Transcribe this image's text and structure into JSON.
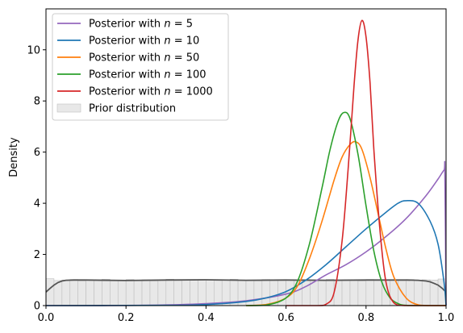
{
  "chart_data": {
    "type": "line",
    "xlabel": "",
    "ylabel": "Density",
    "xlim": [
      0,
      1
    ],
    "ylim": [
      0,
      11.6
    ],
    "x_ticks": [
      "0.0",
      "0.2",
      "0.4",
      "0.6",
      "0.8",
      "1.0"
    ],
    "y_ticks": [
      "0",
      "2",
      "4",
      "6",
      "8",
      "10"
    ],
    "legend_position": "top-left",
    "grid": false,
    "series": [
      {
        "name": "Posterior with n = 5",
        "legend_prefix": "Posterior with ",
        "legend_var": "n",
        "legend_value": " = 5",
        "color": "#9467bd",
        "x": [
          0,
          0.1,
          0.2,
          0.3,
          0.4,
          0.5,
          0.6,
          0.65,
          0.7,
          0.75,
          0.8,
          0.85,
          0.9,
          0.95,
          0.98,
          0.995,
          0.997,
          1.0
        ],
        "y": [
          0,
          0.001,
          0.006,
          0.025,
          0.08,
          0.19,
          0.45,
          0.75,
          1.2,
          1.6,
          2.1,
          2.7,
          3.4,
          4.3,
          4.95,
          5.3,
          5.2,
          0
        ]
      },
      {
        "name": "Posterior with n = 10",
        "legend_prefix": "Posterior with ",
        "legend_var": "n",
        "legend_value": " = 10",
        "color": "#1f77b4",
        "x": [
          0,
          0.3,
          0.4,
          0.5,
          0.55,
          0.6,
          0.65,
          0.7,
          0.75,
          0.8,
          0.85,
          0.88,
          0.9,
          0.93,
          0.96,
          0.98,
          0.995,
          1.0
        ],
        "y": [
          0,
          0.01,
          0.04,
          0.16,
          0.3,
          0.55,
          1.0,
          1.6,
          2.3,
          3.0,
          3.65,
          4.0,
          4.1,
          4.0,
          3.3,
          2.4,
          0.9,
          0
        ]
      },
      {
        "name": "Posterior with n = 50",
        "legend_prefix": "Posterior with ",
        "legend_var": "n",
        "legend_value": " = 50",
        "color": "#ff7f0e",
        "x": [
          0.5,
          0.55,
          0.6,
          0.63,
          0.66,
          0.69,
          0.72,
          0.74,
          0.76,
          0.775,
          0.79,
          0.81,
          0.83,
          0.85,
          0.87,
          0.9,
          0.93,
          0.96,
          1.0
        ],
        "y": [
          0,
          0.04,
          0.3,
          0.8,
          1.9,
          3.3,
          4.9,
          5.8,
          6.3,
          6.4,
          6.1,
          5.0,
          3.6,
          2.2,
          1.1,
          0.3,
          0.03,
          0,
          0
        ]
      },
      {
        "name": "Posterior with n = 100",
        "legend_prefix": "Posterior with ",
        "legend_var": "n",
        "legend_value": " = 100",
        "color": "#2ca02c",
        "x": [
          0.5,
          0.55,
          0.6,
          0.63,
          0.66,
          0.69,
          0.71,
          0.73,
          0.745,
          0.76,
          0.78,
          0.8,
          0.82,
          0.84,
          0.86,
          0.88,
          0.9,
          0.95,
          1.0
        ],
        "y": [
          0,
          0.02,
          0.3,
          1.0,
          2.5,
          4.6,
          6.1,
          7.2,
          7.55,
          7.3,
          5.9,
          3.9,
          2.1,
          0.9,
          0.3,
          0.08,
          0.01,
          0,
          0
        ]
      },
      {
        "name": "Posterior with n = 1000",
        "legend_prefix": "Posterior with ",
        "legend_var": "n",
        "legend_value": " = 1000",
        "color": "#d62728",
        "x": [
          0.6,
          0.68,
          0.7,
          0.72,
          0.74,
          0.755,
          0.77,
          0.78,
          0.79,
          0.8,
          0.81,
          0.82,
          0.835,
          0.85,
          0.87,
          0.9,
          1.0
        ],
        "y": [
          0,
          0,
          0.05,
          0.5,
          2.5,
          5.3,
          8.6,
          10.4,
          11.15,
          10.5,
          8.7,
          6.0,
          2.9,
          0.9,
          0.1,
          0,
          0
        ]
      }
    ],
    "prior": {
      "name": "Prior distribution",
      "fill_color": "#e8e8e8",
      "edge_color": "#bfbfbf",
      "kde_color": "#555555",
      "bins": 50,
      "bar_heights": [
        1.05,
        0.98,
        1.0,
        1.02,
        0.97,
        1.01,
        0.99,
        1.03,
        0.98,
        1.0,
        1.02,
        0.99,
        1.01,
        0.97,
        1.0,
        1.03,
        0.98,
        1.01,
        0.99,
        1.02,
        1.0,
        0.98,
        1.01,
        1.03,
        0.99,
        1.0,
        0.97,
        1.02,
        1.0,
        0.99,
        1.01,
        0.98,
        1.02,
        1.0,
        0.99,
        1.03,
        0.98,
        1.01,
        1.0,
        0.97,
        1.02,
        0.99,
        1.01,
        1.0,
        0.98,
        1.02,
        0.99,
        1.01,
        1.0,
        1.04
      ],
      "kde_x": [
        0,
        0.01,
        0.02,
        0.03,
        0.04,
        0.05,
        0.07,
        0.1,
        0.2,
        0.3,
        0.4,
        0.5,
        0.6,
        0.7,
        0.8,
        0.9,
        0.93,
        0.95,
        0.96,
        0.97,
        0.98,
        0.99,
        1.0
      ],
      "kde_y": [
        0.53,
        0.67,
        0.8,
        0.9,
        0.96,
        0.99,
        1.0,
        1.0,
        0.98,
        1.0,
        1.01,
        0.99,
        1.0,
        0.99,
        1.0,
        1.0,
        0.99,
        0.96,
        0.93,
        0.87,
        0.8,
        0.68,
        0.53
      ]
    }
  }
}
